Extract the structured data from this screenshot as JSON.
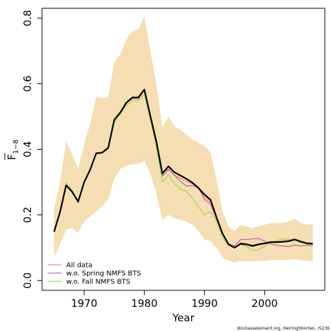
{
  "chart_data": {
    "type": "line",
    "xlabel": "Year",
    "ylabel": "F",
    "ylabel_sub": "1−8",
    "xlim": [
      1963,
      2010
    ],
    "ylim": [
      -0.03,
      0.83
    ],
    "xticks": [
      1970,
      1980,
      1990,
      2000
    ],
    "yticks": [
      0.0,
      0.2,
      0.4,
      0.6,
      0.8
    ],
    "ytick_labels": [
      "0.0",
      "0.2",
      "0.4",
      "0.6",
      "0.8"
    ],
    "grid": false,
    "legend_position": "bottom-left",
    "band": {
      "color": "#f5deb3",
      "x": [
        1965,
        1966,
        1967,
        1968,
        1969,
        1970,
        1971,
        1972,
        1973,
        1974,
        1975,
        1976,
        1977,
        1978,
        1979,
        1980,
        1981,
        1982,
        1983,
        1984,
        1985,
        1986,
        1987,
        1988,
        1989,
        1990,
        1991,
        1992,
        1993,
        1994,
        1995,
        1996,
        1997,
        1998,
        1999,
        2000,
        2001,
        2002,
        2003,
        2004,
        2005,
        2006,
        2007,
        2008
      ],
      "lower": [
        0.07,
        0.11,
        0.155,
        0.16,
        0.145,
        0.18,
        0.195,
        0.21,
        0.225,
        0.25,
        0.31,
        0.34,
        0.35,
        0.355,
        0.355,
        0.365,
        0.325,
        0.265,
        0.185,
        0.2,
        0.19,
        0.185,
        0.18,
        0.17,
        0.15,
        0.125,
        0.12,
        0.1,
        0.07,
        0.06,
        0.055,
        0.06,
        0.058,
        0.058,
        0.06,
        0.06,
        0.062,
        0.062,
        0.062,
        0.063,
        0.065,
        0.062,
        0.06,
        0.058
      ],
      "upper": [
        0.22,
        0.3,
        0.425,
        0.385,
        0.34,
        0.415,
        0.48,
        0.56,
        0.555,
        0.56,
        0.665,
        0.69,
        0.735,
        0.76,
        0.765,
        0.805,
        0.7,
        0.6,
        0.465,
        0.5,
        0.47,
        0.46,
        0.445,
        0.43,
        0.42,
        0.41,
        0.39,
        0.31,
        0.21,
        0.165,
        0.15,
        0.17,
        0.165,
        0.16,
        0.165,
        0.17,
        0.175,
        0.175,
        0.175,
        0.18,
        0.188,
        0.175,
        0.17,
        0.172
      ]
    },
    "series": [
      {
        "name": "All data",
        "color": "#e8737a",
        "values": [
          0.148,
          0.21,
          0.292,
          0.272,
          0.24,
          0.3,
          0.338,
          0.388,
          0.39,
          0.405,
          0.488,
          0.512,
          0.54,
          0.555,
          0.555,
          0.58,
          0.5,
          0.42,
          0.328,
          0.34,
          0.32,
          0.312,
          0.302,
          0.295,
          0.282,
          0.255,
          0.24,
          0.19,
          0.14,
          0.112,
          0.1,
          0.115,
          0.112,
          0.108,
          0.112,
          0.115,
          0.118,
          0.118,
          0.12,
          0.122,
          0.125,
          0.118,
          0.113,
          0.113
        ]
      },
      {
        "name": "w.o. Spring NMFS BTS",
        "color": "#a64ca6",
        "values": [
          0.148,
          0.21,
          0.292,
          0.272,
          0.24,
          0.3,
          0.338,
          0.388,
          0.39,
          0.405,
          0.488,
          0.512,
          0.54,
          0.555,
          0.555,
          0.58,
          0.5,
          0.42,
          0.318,
          0.338,
          0.322,
          0.302,
          0.288,
          0.29,
          0.282,
          0.248,
          0.232,
          0.19,
          0.142,
          0.112,
          0.105,
          0.125,
          0.125,
          0.127,
          0.128,
          0.12,
          0.112,
          0.107,
          0.105,
          0.103,
          0.108,
          0.105,
          0.107,
          0.106
        ]
      },
      {
        "name": "w.o. Fall NMFS BTS",
        "color": "#9acd32",
        "values": [
          0.148,
          0.212,
          0.298,
          0.275,
          0.245,
          0.3,
          0.338,
          0.385,
          0.388,
          0.4,
          0.482,
          0.506,
          0.534,
          0.548,
          0.548,
          0.568,
          0.49,
          0.408,
          0.3,
          0.322,
          0.295,
          0.278,
          0.272,
          0.252,
          0.225,
          0.2,
          0.21,
          0.182,
          0.13,
          0.108,
          0.1,
          0.11,
          0.103,
          0.092,
          0.094,
          0.105,
          0.116,
          0.122,
          0.126,
          0.126,
          0.126,
          0.122,
          0.116,
          0.115
        ]
      },
      {
        "color": "#000000",
        "values": [
          0.148,
          0.21,
          0.29,
          0.27,
          0.24,
          0.3,
          0.338,
          0.388,
          0.39,
          0.405,
          0.49,
          0.512,
          0.542,
          0.558,
          0.558,
          0.582,
          0.502,
          0.424,
          0.326,
          0.348,
          0.33,
          0.32,
          0.31,
          0.298,
          0.282,
          0.262,
          0.246,
          0.192,
          0.143,
          0.11,
          0.1,
          0.112,
          0.11,
          0.105,
          0.11,
          0.113,
          0.117,
          0.117,
          0.118,
          0.12,
          0.125,
          0.118,
          0.113,
          0.112
        ]
      }
    ]
  },
  "footer_text": "stockassessment.org, HerringShorten, r5236"
}
